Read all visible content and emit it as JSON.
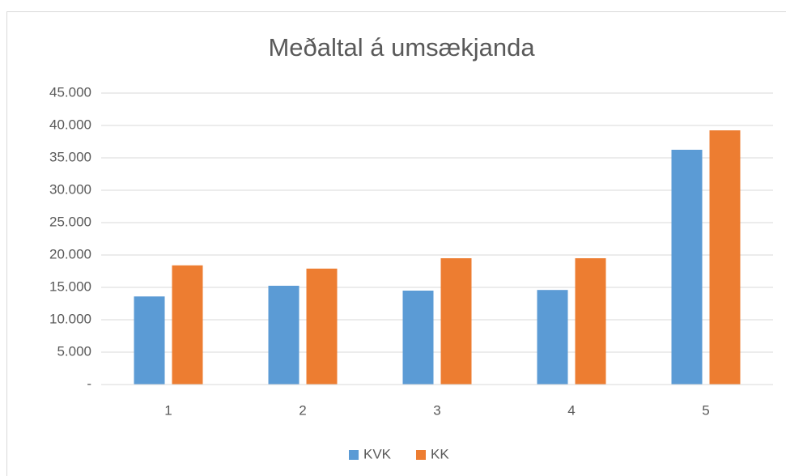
{
  "chart_data": {
    "type": "bar",
    "title": "Meðaltal á umsækjanda",
    "categories": [
      "1",
      "2",
      "3",
      "4",
      "5"
    ],
    "series": [
      {
        "name": "KVK",
        "color": "#5b9bd5",
        "values": [
          13600,
          15250,
          14500,
          14600,
          36250
        ]
      },
      {
        "name": "KK",
        "color": "#ed7d31",
        "values": [
          18400,
          17900,
          19500,
          19500,
          39250
        ]
      }
    ],
    "ylim": [
      0,
      45000
    ],
    "yticks": [
      {
        "value": 0,
        "label": "-"
      },
      {
        "value": 5000,
        "label": "5.000"
      },
      {
        "value": 10000,
        "label": "10.000"
      },
      {
        "value": 15000,
        "label": "15.000"
      },
      {
        "value": 20000,
        "label": "20.000"
      },
      {
        "value": 25000,
        "label": "25.000"
      },
      {
        "value": 30000,
        "label": "30.000"
      },
      {
        "value": 35000,
        "label": "35.000"
      },
      {
        "value": 40000,
        "label": "40.000"
      },
      {
        "value": 45000,
        "label": "45.000"
      }
    ],
    "grid": true,
    "legend": "bottom"
  }
}
